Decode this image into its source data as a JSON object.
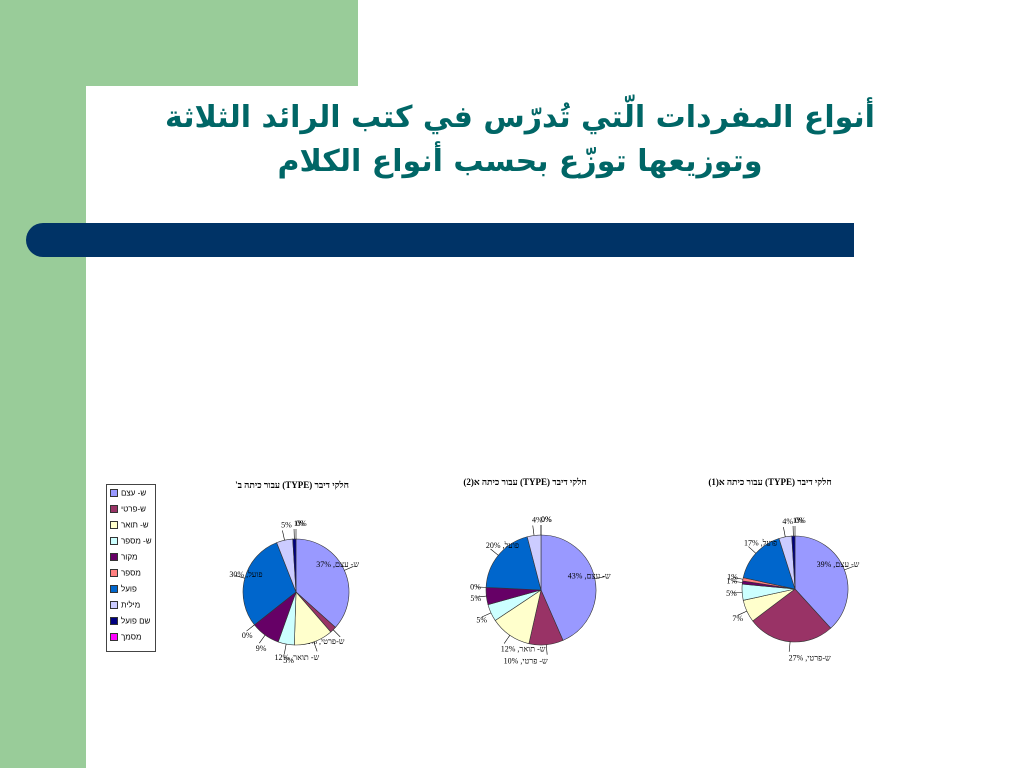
{
  "slide": {
    "title_line1": "أنواع المفردات الّتي تُدرّس في كتب الرائد الثلاثة",
    "title_line2": "وتوزيعها توزّع بحسب أنواع الكلام",
    "colors": {
      "green": "#99cc99",
      "navy": "#003366",
      "title": "#006666"
    }
  },
  "legend": {
    "items": [
      {
        "label": "ש- עצם",
        "color": "#9999ff"
      },
      {
        "label": "ש-פרטי",
        "color": "#993366"
      },
      {
        "label": "ש- תואר",
        "color": "#ffffcc"
      },
      {
        "label": "ש- מספר",
        "color": "#ccffff"
      },
      {
        "label": "מקור",
        "color": "#660066"
      },
      {
        "label": "מספר",
        "color": "#ff8080"
      },
      {
        "label": "פועל",
        "color": "#0066cc"
      },
      {
        "label": "מילית",
        "color": "#ccccff"
      },
      {
        "label": "שם פועל",
        "color": "#000080"
      },
      {
        "label": "מסמך",
        "color": "#ff00ff"
      }
    ]
  },
  "chart_data": [
    {
      "type": "pie",
      "title": "חלקי דיבר (TYPE) עבור כיתה ב'",
      "series": [
        {
          "values": [
            37,
            2,
            12,
            5,
            9,
            0,
            30,
            5,
            1,
            0
          ]
        }
      ],
      "data_labels": [
        "ש- עצם, 37%",
        "ש-פרטי, 2%",
        "ש- תואר, 12%",
        "5%",
        "9%",
        "0%",
        "פועל, 30%",
        "5%",
        "1%",
        "0%"
      ]
    },
    {
      "type": "pie",
      "title": "חלקי דיבר (TYPE) עבור כיתה א(2)",
      "series": [
        {
          "values": [
            43,
            10,
            12,
            5,
            5,
            0,
            20,
            4,
            0,
            0
          ]
        }
      ],
      "data_labels": [
        "ש- עצם, 43%",
        "ש- פרטי, 10%",
        "ש- תואר, 12%",
        "5%",
        "5%",
        "0%",
        "פועל, 20%",
        "4%",
        "0%",
        "0%"
      ]
    },
    {
      "type": "pie",
      "title": "חלקי דיבר (TYPE) עבור כיתה א(1)",
      "series": [
        {
          "values": [
            39,
            27,
            7,
            5,
            1,
            1,
            17,
            4,
            1,
            0
          ]
        }
      ],
      "data_labels": [
        "ש- עצם, 39%",
        "ש-פרטי, 27%",
        "7%",
        "5%",
        "1%",
        "1%",
        "פועל, 17%",
        "4%",
        "1%",
        "0%"
      ]
    }
  ]
}
